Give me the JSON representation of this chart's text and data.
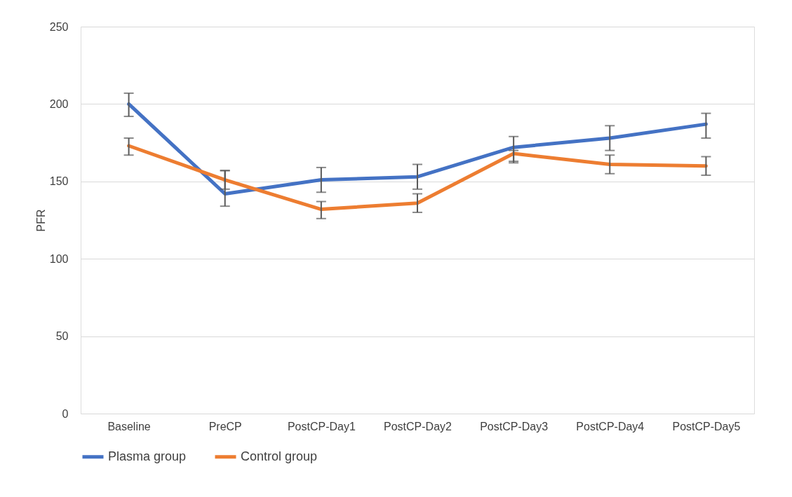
{
  "chart_data": {
    "type": "line",
    "ylabel": "PFR",
    "categories": [
      "Baseline",
      "PreCP",
      "PostCP-Day1",
      "PostCP-Day2",
      "PostCP-Day3",
      "PostCP-Day4",
      "PostCP-Day5"
    ],
    "series": [
      {
        "name": "Plasma group",
        "color": "#4472c4",
        "values": [
          200,
          142,
          151,
          153,
          172,
          178,
          187
        ],
        "errors": [
          [
            192,
            207
          ],
          [
            134,
            157
          ],
          [
            143,
            159
          ],
          [
            145,
            161
          ],
          [
            163,
            179
          ],
          [
            170,
            186
          ],
          [
            178,
            194
          ]
        ]
      },
      {
        "name": "Control group",
        "color": "#ed7d31",
        "values": [
          173,
          151,
          132,
          136,
          168,
          161,
          160
        ],
        "errors": [
          [
            167,
            178
          ],
          [
            145,
            157
          ],
          [
            126,
            137
          ],
          [
            130,
            142
          ],
          [
            162,
            170
          ],
          [
            155,
            167
          ],
          [
            154,
            166
          ]
        ]
      }
    ],
    "ylim": [
      0,
      250
    ],
    "yticks": [
      0,
      50,
      100,
      150,
      200,
      250
    ],
    "grid": "y",
    "legend": "bottom",
    "marker": "none",
    "line_style": "solid"
  }
}
